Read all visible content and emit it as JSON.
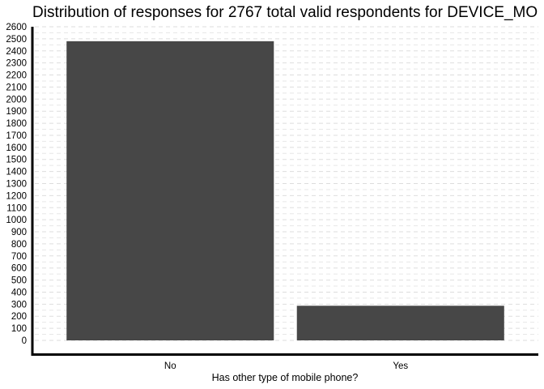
{
  "chart_data": {
    "type": "bar",
    "title": "Distribution of responses for 2767 total valid respondents for DEVICE_MO",
    "xlabel": "Has other type of mobile phone?",
    "ylabel": "",
    "categories": [
      "No",
      "Yes"
    ],
    "values": [
      2480,
      287
    ],
    "ylim": [
      0,
      2600
    ],
    "ytick_step": 100,
    "grid": true,
    "bar_color": "#474747",
    "legend": "none"
  }
}
